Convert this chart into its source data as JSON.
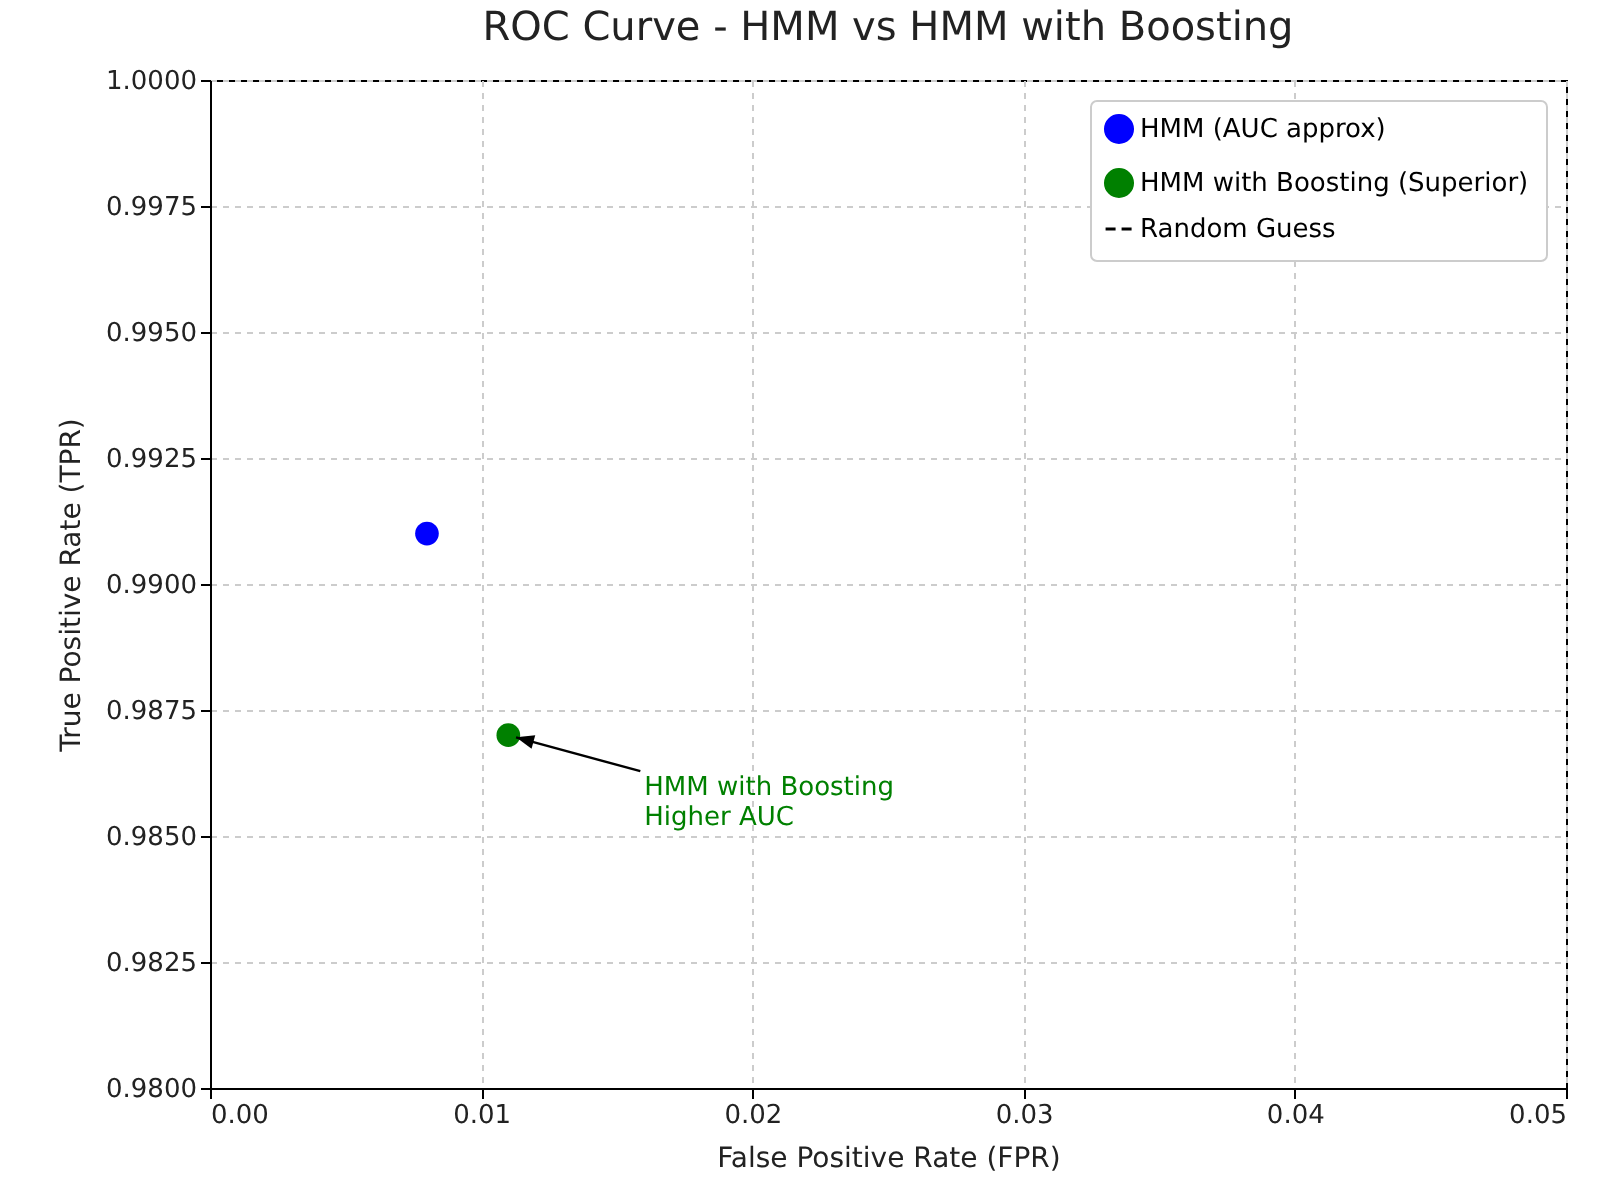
{
  "chart_data": {
    "type": "scatter",
    "title": "ROC Curve - HMM vs HMM with Boosting",
    "xlabel": "False Positive Rate (FPR)",
    "ylabel": "True Positive Rate (TPR)",
    "series": [
      {
        "name": "HMM (AUC approx)",
        "color": "#0000ff",
        "x": [
          0.008
        ],
        "values": [
          0.991
        ]
      },
      {
        "name": "HMM with Boosting (Superior)",
        "color": "#008000",
        "x": [
          0.011
        ],
        "values": [
          0.987
        ]
      },
      {
        "name": "Random Guess",
        "type": "line",
        "line_style": "dashed",
        "color": "#000000"
      }
    ],
    "annotations": [
      {
        "text": "HMM with Boosting\nHigher AUC",
        "x": 0.011,
        "y": 0.987
      }
    ],
    "xlim": [
      0,
      0.05
    ],
    "ylim": [
      0.98,
      1.0
    ],
    "xticks": [
      {
        "value": 0,
        "label": "0.00"
      },
      {
        "value": 0.01,
        "label": "0.01"
      },
      {
        "value": 0.02,
        "label": "0.02"
      },
      {
        "value": 0.03,
        "label": "0.03"
      },
      {
        "value": 0.04,
        "label": "0.04"
      },
      {
        "value": 0.05,
        "label": "0.05"
      }
    ],
    "yticks": [
      {
        "value": 0.98,
        "label": "0.9800"
      },
      {
        "value": 0.9825,
        "label": "0.9825"
      },
      {
        "value": 0.985,
        "label": "0.9850"
      },
      {
        "value": 0.9875,
        "label": "0.9875"
      },
      {
        "value": 0.99,
        "label": "0.9900"
      },
      {
        "value": 0.9925,
        "label": "0.9925"
      },
      {
        "value": 0.995,
        "label": "0.9950"
      },
      {
        "value": 0.9975,
        "label": "0.9975"
      },
      {
        "value": 1.0,
        "label": "1.0000"
      }
    ],
    "grid": true,
    "legend": "top right",
    "marker": "circle"
  }
}
